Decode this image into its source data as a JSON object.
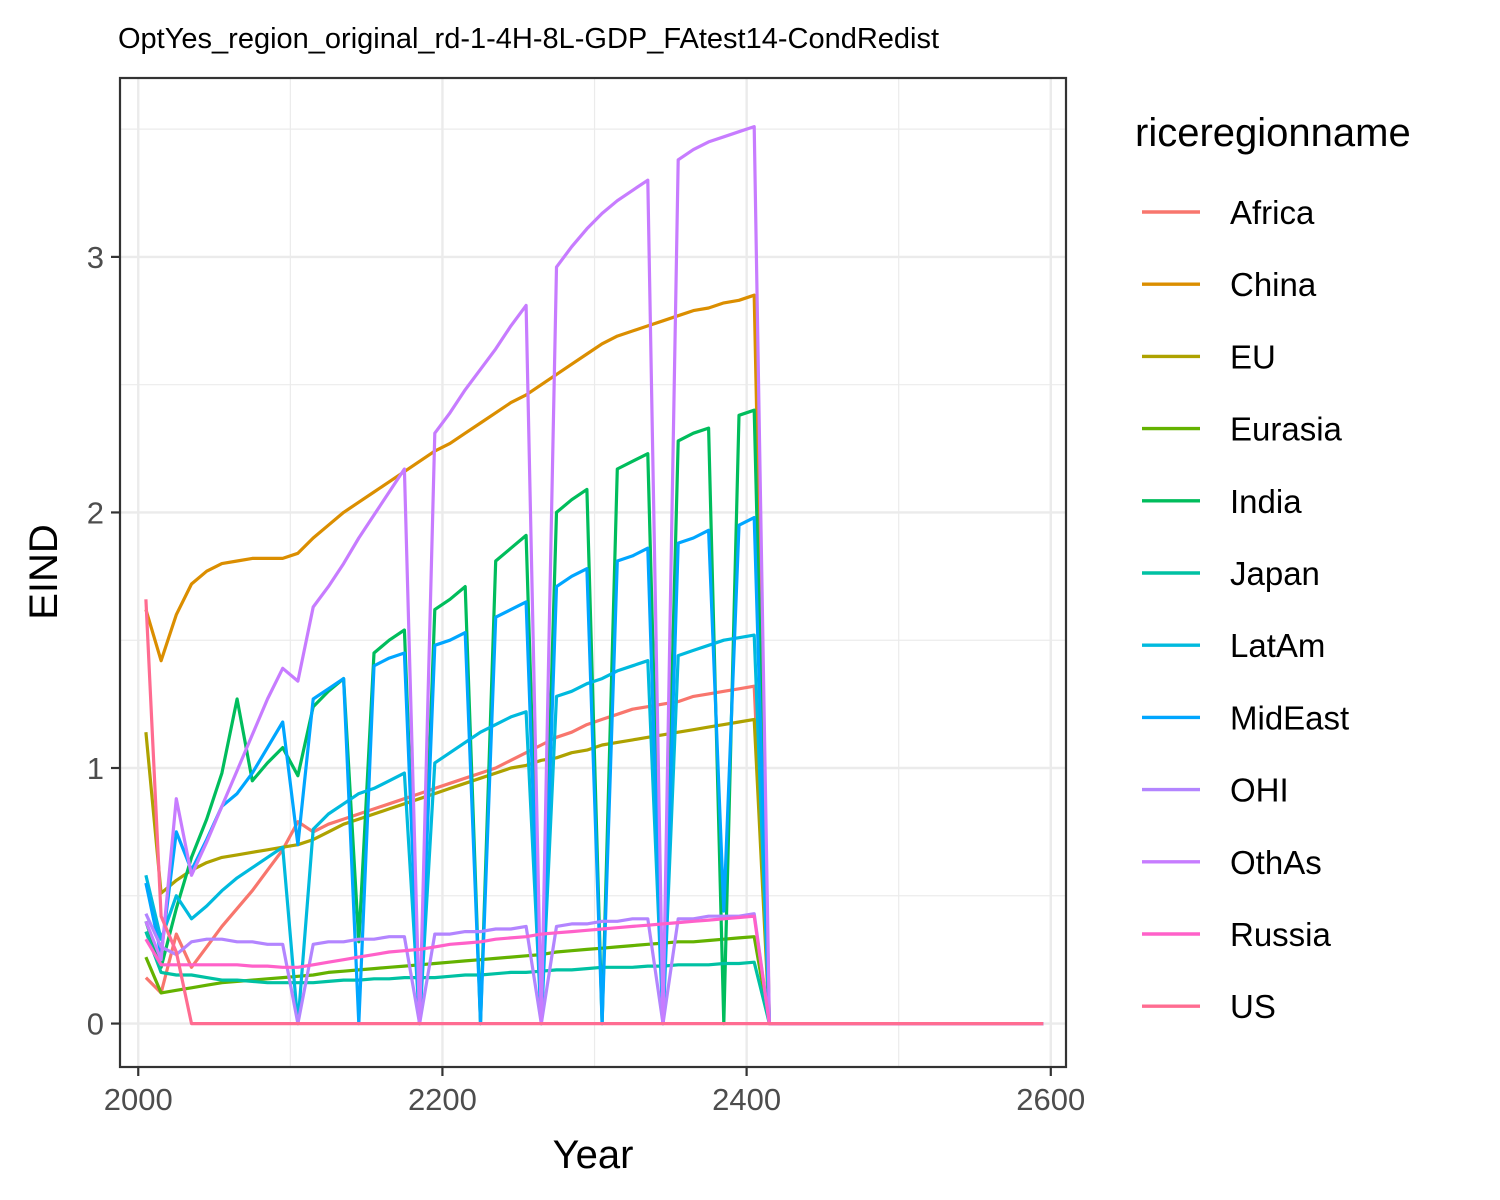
{
  "chart_data": {
    "type": "line",
    "title": "OptYes_region_original_rd-1-4H-8L-GDP_FAtest14-CondRedist",
    "xlabel": "Year",
    "ylabel": "EIND",
    "xlim": [
      1988,
      2610
    ],
    "ylim": [
      -0.17,
      3.7
    ],
    "x_ticks": [
      2000,
      2200,
      2400,
      2600
    ],
    "x_tick_labels": [
      "2000",
      "2200",
      "2400",
      "2600"
    ],
    "y_ticks": [
      0,
      1,
      2,
      3
    ],
    "y_tick_labels": [
      "0",
      "1",
      "2",
      "3"
    ],
    "grid": true,
    "legend_title": "riceregionname",
    "legend_position": "right",
    "series": [
      {
        "name": "Africa",
        "color": "#F8766D",
        "x": [
          2005,
          2015,
          2025,
          2035,
          2045,
          2055,
          2065,
          2075,
          2085,
          2095,
          2105,
          2115,
          2125,
          2135,
          2145,
          2155,
          2165,
          2175,
          2185,
          2195,
          2205,
          2215,
          2225,
          2235,
          2245,
          2255,
          2265,
          2275,
          2285,
          2295,
          2305,
          2315,
          2325,
          2335,
          2345,
          2355,
          2365,
          2375,
          2385,
          2395,
          2405,
          2415,
          2595
        ],
        "y": [
          0.18,
          0.12,
          0.35,
          0.22,
          0.3,
          0.38,
          0.45,
          0.52,
          0.6,
          0.68,
          0.79,
          0.75,
          0.78,
          0.8,
          0.82,
          0.84,
          0.86,
          0.88,
          0.9,
          0.92,
          0.94,
          0.96,
          0.98,
          1.0,
          1.03,
          1.06,
          1.09,
          1.12,
          1.14,
          1.17,
          1.19,
          1.21,
          1.23,
          1.24,
          1.25,
          1.26,
          1.28,
          1.29,
          1.3,
          1.31,
          1.32,
          0.0,
          0.0
        ]
      },
      {
        "name": "China",
        "color": "#DB8E00",
        "x": [
          2005,
          2015,
          2025,
          2035,
          2045,
          2055,
          2065,
          2075,
          2085,
          2095,
          2105,
          2115,
          2125,
          2135,
          2145,
          2155,
          2165,
          2175,
          2185,
          2195,
          2205,
          2215,
          2225,
          2235,
          2245,
          2255,
          2265,
          2275,
          2285,
          2295,
          2305,
          2315,
          2325,
          2335,
          2345,
          2355,
          2365,
          2375,
          2385,
          2395,
          2405,
          2415,
          2595
        ],
        "y": [
          1.62,
          1.42,
          1.6,
          1.72,
          1.77,
          1.8,
          1.81,
          1.82,
          1.82,
          1.82,
          1.84,
          1.9,
          1.95,
          2.0,
          2.04,
          2.08,
          2.12,
          2.16,
          2.2,
          2.24,
          2.27,
          2.31,
          2.35,
          2.39,
          2.43,
          2.46,
          2.5,
          2.54,
          2.58,
          2.62,
          2.66,
          2.69,
          2.71,
          2.73,
          2.75,
          2.77,
          2.79,
          2.8,
          2.82,
          2.83,
          2.85,
          0.0,
          0.0
        ]
      },
      {
        "name": "EU",
        "color": "#AEA200",
        "x": [
          2005,
          2015,
          2025,
          2035,
          2045,
          2055,
          2065,
          2075,
          2085,
          2095,
          2105,
          2115,
          2125,
          2135,
          2145,
          2155,
          2165,
          2175,
          2185,
          2195,
          2205,
          2215,
          2225,
          2235,
          2245,
          2255,
          2265,
          2275,
          2285,
          2295,
          2305,
          2315,
          2325,
          2335,
          2345,
          2355,
          2365,
          2375,
          2385,
          2395,
          2405,
          2415,
          2595
        ],
        "y": [
          1.14,
          0.51,
          0.56,
          0.6,
          0.63,
          0.65,
          0.66,
          0.67,
          0.68,
          0.69,
          0.7,
          0.72,
          0.75,
          0.78,
          0.8,
          0.82,
          0.84,
          0.86,
          0.88,
          0.9,
          0.92,
          0.94,
          0.96,
          0.98,
          1.0,
          1.01,
          1.03,
          1.04,
          1.06,
          1.07,
          1.09,
          1.1,
          1.11,
          1.12,
          1.13,
          1.14,
          1.15,
          1.16,
          1.17,
          1.18,
          1.19,
          0.0,
          0.0
        ]
      },
      {
        "name": "Eurasia",
        "color": "#64B200",
        "x": [
          2005,
          2015,
          2025,
          2035,
          2045,
          2055,
          2065,
          2075,
          2085,
          2095,
          2105,
          2115,
          2125,
          2135,
          2145,
          2155,
          2165,
          2175,
          2185,
          2195,
          2205,
          2215,
          2225,
          2235,
          2245,
          2255,
          2265,
          2275,
          2285,
          2295,
          2305,
          2315,
          2325,
          2335,
          2345,
          2355,
          2365,
          2375,
          2385,
          2395,
          2405,
          2415,
          2595
        ],
        "y": [
          0.26,
          0.12,
          0.13,
          0.14,
          0.15,
          0.16,
          0.165,
          0.17,
          0.175,
          0.18,
          0.185,
          0.19,
          0.2,
          0.205,
          0.21,
          0.215,
          0.22,
          0.225,
          0.23,
          0.235,
          0.24,
          0.245,
          0.25,
          0.255,
          0.26,
          0.265,
          0.27,
          0.28,
          0.285,
          0.29,
          0.295,
          0.3,
          0.305,
          0.31,
          0.315,
          0.32,
          0.32,
          0.325,
          0.33,
          0.335,
          0.34,
          0.0,
          0.0
        ]
      },
      {
        "name": "India",
        "color": "#00BD5C",
        "x": [
          2005,
          2015,
          2025,
          2035,
          2045,
          2055,
          2065,
          2075,
          2085,
          2095,
          2105,
          2115,
          2125,
          2135,
          2145,
          2155,
          2165,
          2175,
          2185,
          2195,
          2205,
          2215,
          2225,
          2235,
          2245,
          2255,
          2265,
          2275,
          2285,
          2295,
          2305,
          2315,
          2325,
          2335,
          2345,
          2355,
          2365,
          2375,
          2385,
          2395,
          2405,
          2415,
          2595
        ],
        "y": [
          0.4,
          0.22,
          0.45,
          0.65,
          0.8,
          0.98,
          1.27,
          0.95,
          1.02,
          1.08,
          0.97,
          1.24,
          1.3,
          1.35,
          0.32,
          1.45,
          1.5,
          1.54,
          0.0,
          1.62,
          1.66,
          1.71,
          0.0,
          1.81,
          1.86,
          1.91,
          0.0,
          2.0,
          2.05,
          2.09,
          0.0,
          2.17,
          2.2,
          2.23,
          0.0,
          2.28,
          2.31,
          2.33,
          0.0,
          2.38,
          2.4,
          0.0,
          0.0
        ]
      },
      {
        "name": "Japan",
        "color": "#00C1A3",
        "x": [
          2005,
          2015,
          2025,
          2035,
          2045,
          2055,
          2065,
          2075,
          2085,
          2095,
          2105,
          2115,
          2125,
          2135,
          2145,
          2155,
          2165,
          2175,
          2185,
          2195,
          2205,
          2215,
          2225,
          2235,
          2245,
          2255,
          2265,
          2275,
          2285,
          2295,
          2305,
          2315,
          2325,
          2335,
          2345,
          2355,
          2365,
          2375,
          2385,
          2395,
          2405,
          2415,
          2595
        ],
        "y": [
          0.36,
          0.2,
          0.19,
          0.19,
          0.18,
          0.17,
          0.17,
          0.165,
          0.16,
          0.16,
          0.16,
          0.16,
          0.165,
          0.17,
          0.17,
          0.175,
          0.175,
          0.18,
          0.18,
          0.18,
          0.185,
          0.19,
          0.19,
          0.195,
          0.2,
          0.2,
          0.205,
          0.21,
          0.21,
          0.215,
          0.22,
          0.22,
          0.22,
          0.225,
          0.225,
          0.23,
          0.23,
          0.23,
          0.235,
          0.235,
          0.24,
          0.0,
          0.0
        ]
      },
      {
        "name": "LatAm",
        "color": "#00BADE",
        "x": [
          2005,
          2015,
          2025,
          2035,
          2045,
          2055,
          2065,
          2075,
          2085,
          2095,
          2105,
          2115,
          2125,
          2135,
          2145,
          2155,
          2165,
          2175,
          2185,
          2195,
          2205,
          2215,
          2225,
          2235,
          2245,
          2255,
          2265,
          2275,
          2285,
          2295,
          2305,
          2315,
          2325,
          2335,
          2345,
          2355,
          2365,
          2375,
          2385,
          2395,
          2405,
          2415,
          2595
        ],
        "y": [
          0.58,
          0.33,
          0.5,
          0.41,
          0.46,
          0.52,
          0.57,
          0.61,
          0.65,
          0.69,
          0.0,
          0.76,
          0.82,
          0.86,
          0.9,
          0.92,
          0.95,
          0.98,
          0.0,
          1.02,
          1.06,
          1.1,
          1.14,
          1.17,
          1.2,
          1.22,
          0.0,
          1.28,
          1.3,
          1.33,
          1.35,
          1.38,
          1.4,
          1.42,
          0.0,
          1.44,
          1.46,
          1.48,
          1.5,
          1.51,
          1.52,
          0.0,
          0.0
        ]
      },
      {
        "name": "MidEast",
        "color": "#00A6FF",
        "x": [
          2005,
          2015,
          2025,
          2035,
          2045,
          2055,
          2065,
          2075,
          2085,
          2095,
          2105,
          2115,
          2125,
          2135,
          2145,
          2155,
          2165,
          2175,
          2185,
          2195,
          2205,
          2215,
          2225,
          2235,
          2245,
          2255,
          2265,
          2275,
          2285,
          2295,
          2305,
          2315,
          2325,
          2335,
          2345,
          2355,
          2365,
          2375,
          2385,
          2395,
          2405,
          2415,
          2595
        ],
        "y": [
          0.55,
          0.27,
          0.75,
          0.6,
          0.72,
          0.85,
          0.9,
          0.98,
          1.08,
          1.18,
          0.7,
          1.27,
          1.31,
          1.35,
          0.0,
          1.4,
          1.43,
          1.45,
          0.0,
          1.48,
          1.5,
          1.53,
          0.0,
          1.59,
          1.62,
          1.65,
          0.0,
          1.71,
          1.75,
          1.78,
          0.0,
          1.81,
          1.83,
          1.86,
          0.0,
          1.88,
          1.9,
          1.93,
          0.44,
          1.95,
          1.98,
          0.0,
          0.0
        ]
      },
      {
        "name": "OHI",
        "color": "#B385FF",
        "x": [
          2005,
          2015,
          2025,
          2035,
          2045,
          2055,
          2065,
          2075,
          2085,
          2095,
          2105,
          2115,
          2125,
          2135,
          2145,
          2155,
          2165,
          2175,
          2185,
          2195,
          2205,
          2215,
          2225,
          2235,
          2245,
          2255,
          2265,
          2275,
          2285,
          2295,
          2305,
          2315,
          2325,
          2335,
          2345,
          2355,
          2365,
          2375,
          2385,
          2395,
          2405,
          2415,
          2595
        ],
        "y": [
          0.43,
          0.3,
          0.27,
          0.32,
          0.33,
          0.33,
          0.32,
          0.32,
          0.31,
          0.31,
          0.0,
          0.31,
          0.32,
          0.32,
          0.33,
          0.33,
          0.34,
          0.34,
          0.0,
          0.35,
          0.35,
          0.36,
          0.36,
          0.37,
          0.37,
          0.38,
          0.0,
          0.38,
          0.39,
          0.39,
          0.4,
          0.4,
          0.41,
          0.41,
          0.0,
          0.41,
          0.41,
          0.42,
          0.42,
          0.42,
          0.43,
          0.0,
          0.0
        ]
      },
      {
        "name": "OthAs",
        "color": "#C77CFF",
        "x": [
          2005,
          2015,
          2025,
          2035,
          2045,
          2055,
          2065,
          2075,
          2085,
          2095,
          2105,
          2115,
          2125,
          2135,
          2145,
          2155,
          2165,
          2175,
          2185,
          2195,
          2205,
          2215,
          2225,
          2235,
          2245,
          2255,
          2265,
          2275,
          2285,
          2295,
          2305,
          2315,
          2325,
          2335,
          2345,
          2355,
          2365,
          2375,
          2385,
          2395,
          2405,
          2415,
          2595
        ],
        "y": [
          0.4,
          0.25,
          0.88,
          0.58,
          0.71,
          0.85,
          0.99,
          1.13,
          1.27,
          1.39,
          1.34,
          1.63,
          1.71,
          1.8,
          1.9,
          1.99,
          2.08,
          2.17,
          0.0,
          2.31,
          2.39,
          2.48,
          2.56,
          2.64,
          2.73,
          2.81,
          0.0,
          2.96,
          3.04,
          3.11,
          3.17,
          3.22,
          3.26,
          3.3,
          0.0,
          3.38,
          3.42,
          3.45,
          3.47,
          3.49,
          3.51,
          0.0,
          0.0
        ]
      },
      {
        "name": "Russia",
        "color": "#FF61C9",
        "x": [
          2005,
          2015,
          2025,
          2035,
          2045,
          2055,
          2065,
          2075,
          2085,
          2095,
          2105,
          2115,
          2125,
          2135,
          2145,
          2155,
          2165,
          2175,
          2185,
          2195,
          2205,
          2215,
          2225,
          2235,
          2245,
          2255,
          2265,
          2275,
          2285,
          2295,
          2305,
          2315,
          2325,
          2335,
          2345,
          2355,
          2365,
          2375,
          2385,
          2395,
          2405,
          2415,
          2595
        ],
        "y": [
          0.33,
          0.23,
          0.23,
          0.23,
          0.23,
          0.23,
          0.23,
          0.225,
          0.225,
          0.22,
          0.22,
          0.23,
          0.24,
          0.25,
          0.26,
          0.27,
          0.28,
          0.285,
          0.29,
          0.3,
          0.31,
          0.315,
          0.32,
          0.33,
          0.335,
          0.34,
          0.35,
          0.355,
          0.36,
          0.365,
          0.37,
          0.375,
          0.38,
          0.385,
          0.39,
          0.395,
          0.4,
          0.405,
          0.41,
          0.415,
          0.42,
          0.0,
          0.0
        ]
      },
      {
        "name": "US",
        "color": "#FF6C91",
        "x": [
          2005,
          2015,
          2025,
          2035,
          2045,
          2055,
          2065,
          2075,
          2085,
          2095,
          2105,
          2115,
          2125,
          2135,
          2145,
          2155,
          2165,
          2175,
          2185,
          2195,
          2205,
          2215,
          2225,
          2235,
          2245,
          2255,
          2265,
          2275,
          2285,
          2295,
          2305,
          2315,
          2325,
          2335,
          2345,
          2355,
          2365,
          2375,
          2385,
          2395,
          2405,
          2415,
          2595
        ],
        "y": [
          1.66,
          0.42,
          0.28,
          0.0,
          0.0,
          0.0,
          0.0,
          0.0,
          0.0,
          0.0,
          0.0,
          0.0,
          0.0,
          0.0,
          0.0,
          0.0,
          0.0,
          0.0,
          0.0,
          0.0,
          0.0,
          0.0,
          0.0,
          0.0,
          0.0,
          0.0,
          0.0,
          0.0,
          0.0,
          0.0,
          0.0,
          0.0,
          0.0,
          0.0,
          0.0,
          0.0,
          0.0,
          0.0,
          0.0,
          0.0,
          0.0,
          0.0,
          0.0
        ]
      }
    ]
  }
}
